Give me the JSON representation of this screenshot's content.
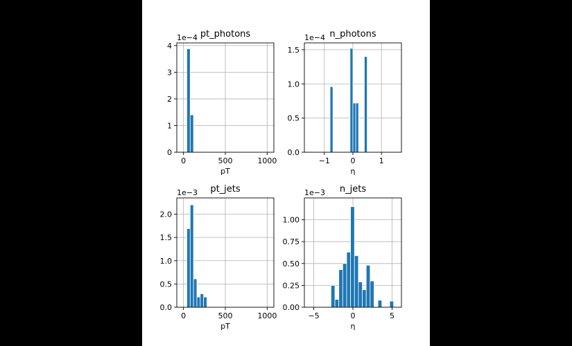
{
  "chart_data": [
    {
      "type": "bar",
      "title": "pt_photons",
      "xlabel": "pT",
      "multiplier": "1e−4",
      "xlim": [
        -80,
        1080
      ],
      "ylim": [
        0,
        4.1
      ],
      "xticks": [
        0,
        500,
        1000
      ],
      "xticklabels": [
        "0",
        "500",
        "1000"
      ],
      "yticks": [
        0,
        1,
        2,
        3,
        4
      ],
      "yticklabels": [
        "0",
        "1",
        "2",
        "3",
        "4"
      ],
      "grid": true,
      "color": "#1f77b4",
      "bins": [
        {
          "x0": 40,
          "x1": 80,
          "value": 3.88
        },
        {
          "x0": 80,
          "x1": 120,
          "value": 1.4
        }
      ]
    },
    {
      "type": "bar",
      "title": "n_photons",
      "xlabel": "η",
      "multiplier": "1e−4",
      "xlim": [
        -1.7,
        1.7
      ],
      "ylim": [
        0,
        1.6
      ],
      "xticks": [
        -1,
        0,
        1
      ],
      "xticklabels": [
        "−1",
        "0",
        "1"
      ],
      "yticks": [
        0,
        0.5,
        1.0,
        1.5
      ],
      "yticklabels": [
        "0.0",
        "0.5",
        "1.0",
        "1.5"
      ],
      "grid": true,
      "color": "#1f77b4",
      "bins": [
        {
          "x0": -0.8,
          "x1": -0.7,
          "value": 0.96
        },
        {
          "x0": -0.1,
          "x1": 0.0,
          "value": 1.52
        },
        {
          "x0": 0.0,
          "x1": 0.1,
          "value": 0.72
        },
        {
          "x0": 0.1,
          "x1": 0.2,
          "value": 0.72
        },
        {
          "x0": 0.4,
          "x1": 0.5,
          "value": 1.4
        }
      ]
    },
    {
      "type": "bar",
      "title": "pt_jets",
      "xlabel": "pT",
      "multiplier": "1e−3",
      "xlim": [
        -80,
        1080
      ],
      "ylim": [
        0,
        2.35
      ],
      "xticks": [
        0,
        500,
        1000
      ],
      "xticklabels": [
        "0",
        "500",
        "1000"
      ],
      "yticks": [
        0,
        0.5,
        1.0,
        1.5,
        2.0
      ],
      "yticklabels": [
        "0.0",
        "0.5",
        "1.0",
        "1.5",
        "2.0"
      ],
      "grid": true,
      "color": "#1f77b4",
      "bins": [
        {
          "x0": 40,
          "x1": 80,
          "value": 1.69
        },
        {
          "x0": 80,
          "x1": 120,
          "value": 2.2
        },
        {
          "x0": 120,
          "x1": 160,
          "value": 0.61
        },
        {
          "x0": 160,
          "x1": 200,
          "value": 0.22
        },
        {
          "x0": 200,
          "x1": 240,
          "value": 0.29
        },
        {
          "x0": 240,
          "x1": 280,
          "value": 0.22
        }
      ]
    },
    {
      "type": "bar",
      "title": "n_jets",
      "xlabel": "η",
      "multiplier": "1e−3",
      "xlim": [
        -6.2,
        6.2
      ],
      "ylim": [
        0,
        1.25
      ],
      "xticks": [
        -5,
        0,
        5
      ],
      "xticklabels": [
        "−5",
        "0",
        "5"
      ],
      "yticks": [
        0,
        0.25,
        0.5,
        0.75,
        1.0
      ],
      "yticklabels": [
        "0.00",
        "0.25",
        "0.50",
        "0.75",
        "1.00"
      ],
      "grid": true,
      "color": "#1f77b4",
      "bins": [
        {
          "x0": -2.8,
          "x1": -2.3,
          "value": 0.25
        },
        {
          "x0": -2.3,
          "x1": -1.8,
          "value": 0.09
        },
        {
          "x0": -1.8,
          "x1": -1.3,
          "value": 0.43
        },
        {
          "x0": -1.3,
          "x1": -0.8,
          "value": 0.5
        },
        {
          "x0": -0.8,
          "x1": -0.3,
          "value": 0.63
        },
        {
          "x0": -0.3,
          "x1": 0.2,
          "value": 1.15
        },
        {
          "x0": 0.2,
          "x1": 0.7,
          "value": 0.59
        },
        {
          "x0": 0.7,
          "x1": 1.2,
          "value": 0.29
        },
        {
          "x0": 1.2,
          "x1": 1.7,
          "value": 0.2
        },
        {
          "x0": 1.7,
          "x1": 2.2,
          "value": 0.48
        },
        {
          "x0": 2.2,
          "x1": 2.7,
          "value": 0.3
        },
        {
          "x0": 3.2,
          "x1": 3.7,
          "value": 0.08
        },
        {
          "x0": 4.7,
          "x1": 5.2,
          "value": 0.07
        }
      ]
    }
  ]
}
